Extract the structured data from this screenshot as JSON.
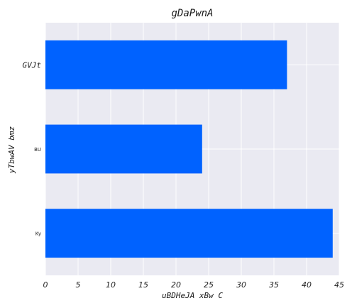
{
  "chart_data": {
    "type": "bar",
    "orientation": "horizontal",
    "title": "gDaPwnA",
    "xlabel": "uBDHeJA xBw C",
    "ylabel": "yTbwAV bmz",
    "categories": [
      "GVJt",
      "BU",
      "Ky"
    ],
    "values": [
      37,
      24,
      44
    ],
    "xlim": [
      0,
      45
    ],
    "xticks": [
      0,
      5,
      10,
      15,
      20,
      25,
      30,
      35,
      40,
      45
    ],
    "grid": true,
    "bar_color": "#0062ff",
    "background_color": "#eaeaf2",
    "grid_color": "#ffffff"
  }
}
